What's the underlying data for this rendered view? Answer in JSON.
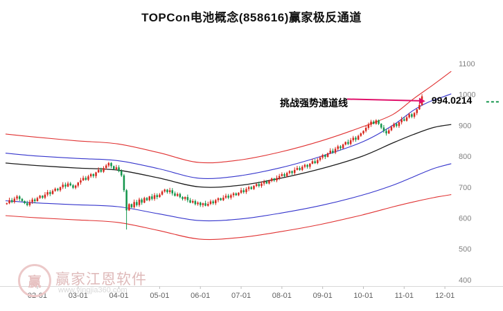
{
  "title": "TOPCon电池概念(858616)赢家极反通道",
  "annotation": {
    "label": "挑战强势通道线",
    "price": "994.0214"
  },
  "watermark": {
    "logo_char": "赢",
    "brand": "赢家江恩软件",
    "url": "www.yingjia360.com"
  },
  "colors": {
    "up": "#d7281e",
    "down": "#13954b",
    "channel_red": "#e03030",
    "channel_blue": "#3333cc",
    "channel_black": "#1a1a1a",
    "arrow": "#e0106a",
    "axis_text": "#808080",
    "x_axis_text": "#606060",
    "baseline": "#d8d8d8",
    "green_dash": "#13954b"
  },
  "chart_data": {
    "type": "candlestick",
    "title": "TOPCon电池概念(858616)赢家极反通道",
    "ylim": [
      400,
      1100
    ],
    "grid": false,
    "y_ticks": [
      400,
      500,
      600,
      700,
      800,
      900,
      1000,
      1100
    ],
    "x_ticks": [
      {
        "slot": 12,
        "label": "02-01"
      },
      {
        "slot": 28,
        "label": "03-01"
      },
      {
        "slot": 44,
        "label": "04-01"
      },
      {
        "slot": 60,
        "label": "05-01"
      },
      {
        "slot": 76,
        "label": "06-01"
      },
      {
        "slot": 92,
        "label": "07-01"
      },
      {
        "slot": 108,
        "label": "08-01"
      },
      {
        "slot": 124,
        "label": "09-01"
      },
      {
        "slot": 140,
        "label": "10-01"
      },
      {
        "slot": 156,
        "label": "11-01"
      },
      {
        "slot": 172,
        "label": "12-01"
      }
    ],
    "slots": 176,
    "open_first": 645,
    "last_price": 994.0214,
    "crash": {
      "index": 47,
      "low": 563
    },
    "closes": [
      648,
      658,
      652,
      663,
      670,
      662,
      655,
      648,
      642,
      652,
      660,
      655,
      665,
      672,
      666,
      676,
      684,
      678,
      688,
      695,
      690,
      700,
      708,
      702,
      712,
      706,
      698,
      705,
      715,
      722,
      730,
      724,
      735,
      742,
      736,
      748,
      756,
      750,
      762,
      770,
      778,
      768,
      758,
      764,
      752,
      738,
      690,
      625,
      645,
      635,
      652,
      642,
      660,
      650,
      665,
      658,
      670,
      662,
      674,
      668,
      676,
      686,
      692,
      684,
      690,
      680,
      672,
      678,
      668,
      662,
      668,
      658,
      650,
      655,
      645,
      650,
      642,
      648,
      640,
      646,
      654,
      648,
      658,
      664,
      658,
      666,
      672,
      666,
      674,
      680,
      674,
      682,
      690,
      684,
      694,
      700,
      694,
      704,
      710,
      704,
      712,
      718,
      712,
      720,
      728,
      722,
      730,
      736,
      742,
      736,
      746,
      752,
      746,
      756,
      762,
      756,
      766,
      772,
      766,
      776,
      784,
      778,
      788,
      796,
      804,
      798,
      810,
      818,
      812,
      824,
      832,
      826,
      838,
      846,
      840,
      852,
      860,
      854,
      866,
      874,
      882,
      892,
      902,
      912,
      905,
      916,
      905,
      893,
      882,
      874,
      884,
      895,
      905,
      898,
      910,
      920,
      915,
      926,
      936,
      928,
      940,
      952,
      966,
      994
    ],
    "channel_lines": [
      {
        "name": "extreme-strong",
        "color": "#e03030",
        "width": 1.1,
        "points": [
          [
            0,
            872
          ],
          [
            12,
            862
          ],
          [
            28,
            850
          ],
          [
            44,
            840
          ],
          [
            60,
            812
          ],
          [
            76,
            780
          ],
          [
            92,
            788
          ],
          [
            108,
            814
          ],
          [
            124,
            850
          ],
          [
            140,
            895
          ],
          [
            152,
            935
          ],
          [
            160,
            985
          ],
          [
            168,
            1032
          ],
          [
            175,
            1075
          ]
        ]
      },
      {
        "name": "strong",
        "color": "#3333cc",
        "width": 1.1,
        "points": [
          [
            0,
            810
          ],
          [
            12,
            801
          ],
          [
            28,
            793
          ],
          [
            44,
            786
          ],
          [
            60,
            760
          ],
          [
            76,
            729
          ],
          [
            92,
            737
          ],
          [
            108,
            763
          ],
          [
            124,
            800
          ],
          [
            140,
            846
          ],
          [
            152,
            900
          ],
          [
            160,
            948
          ],
          [
            166,
            975
          ],
          [
            172,
            993
          ],
          [
            175,
            1002
          ]
        ]
      },
      {
        "name": "life",
        "color": "#1a1a1a",
        "width": 1.3,
        "points": [
          [
            0,
            778
          ],
          [
            12,
            770
          ],
          [
            28,
            762
          ],
          [
            44,
            755
          ],
          [
            60,
            730
          ],
          [
            76,
            701
          ],
          [
            92,
            706
          ],
          [
            108,
            729
          ],
          [
            124,
            760
          ],
          [
            140,
            800
          ],
          [
            152,
            843
          ],
          [
            160,
            870
          ],
          [
            168,
            893
          ],
          [
            175,
            903
          ]
        ]
      },
      {
        "name": "weak",
        "color": "#3333cc",
        "width": 1.1,
        "points": [
          [
            0,
            656
          ],
          [
            12,
            649
          ],
          [
            28,
            643
          ],
          [
            44,
            637
          ],
          [
            60,
            614
          ],
          [
            76,
            592
          ],
          [
            92,
            597
          ],
          [
            108,
            616
          ],
          [
            124,
            641
          ],
          [
            140,
            674
          ],
          [
            152,
            706
          ],
          [
            160,
            733
          ],
          [
            168,
            760
          ],
          [
            175,
            776
          ]
        ]
      },
      {
        "name": "extreme-weak",
        "color": "#e03030",
        "width": 1.1,
        "points": [
          [
            0,
            608
          ],
          [
            12,
            601
          ],
          [
            28,
            594
          ],
          [
            44,
            586
          ],
          [
            60,
            560
          ],
          [
            76,
            532
          ],
          [
            92,
            537
          ],
          [
            108,
            556
          ],
          [
            124,
            580
          ],
          [
            140,
            610
          ],
          [
            152,
            636
          ],
          [
            160,
            652
          ],
          [
            168,
            666
          ],
          [
            175,
            676
          ]
        ]
      }
    ]
  }
}
